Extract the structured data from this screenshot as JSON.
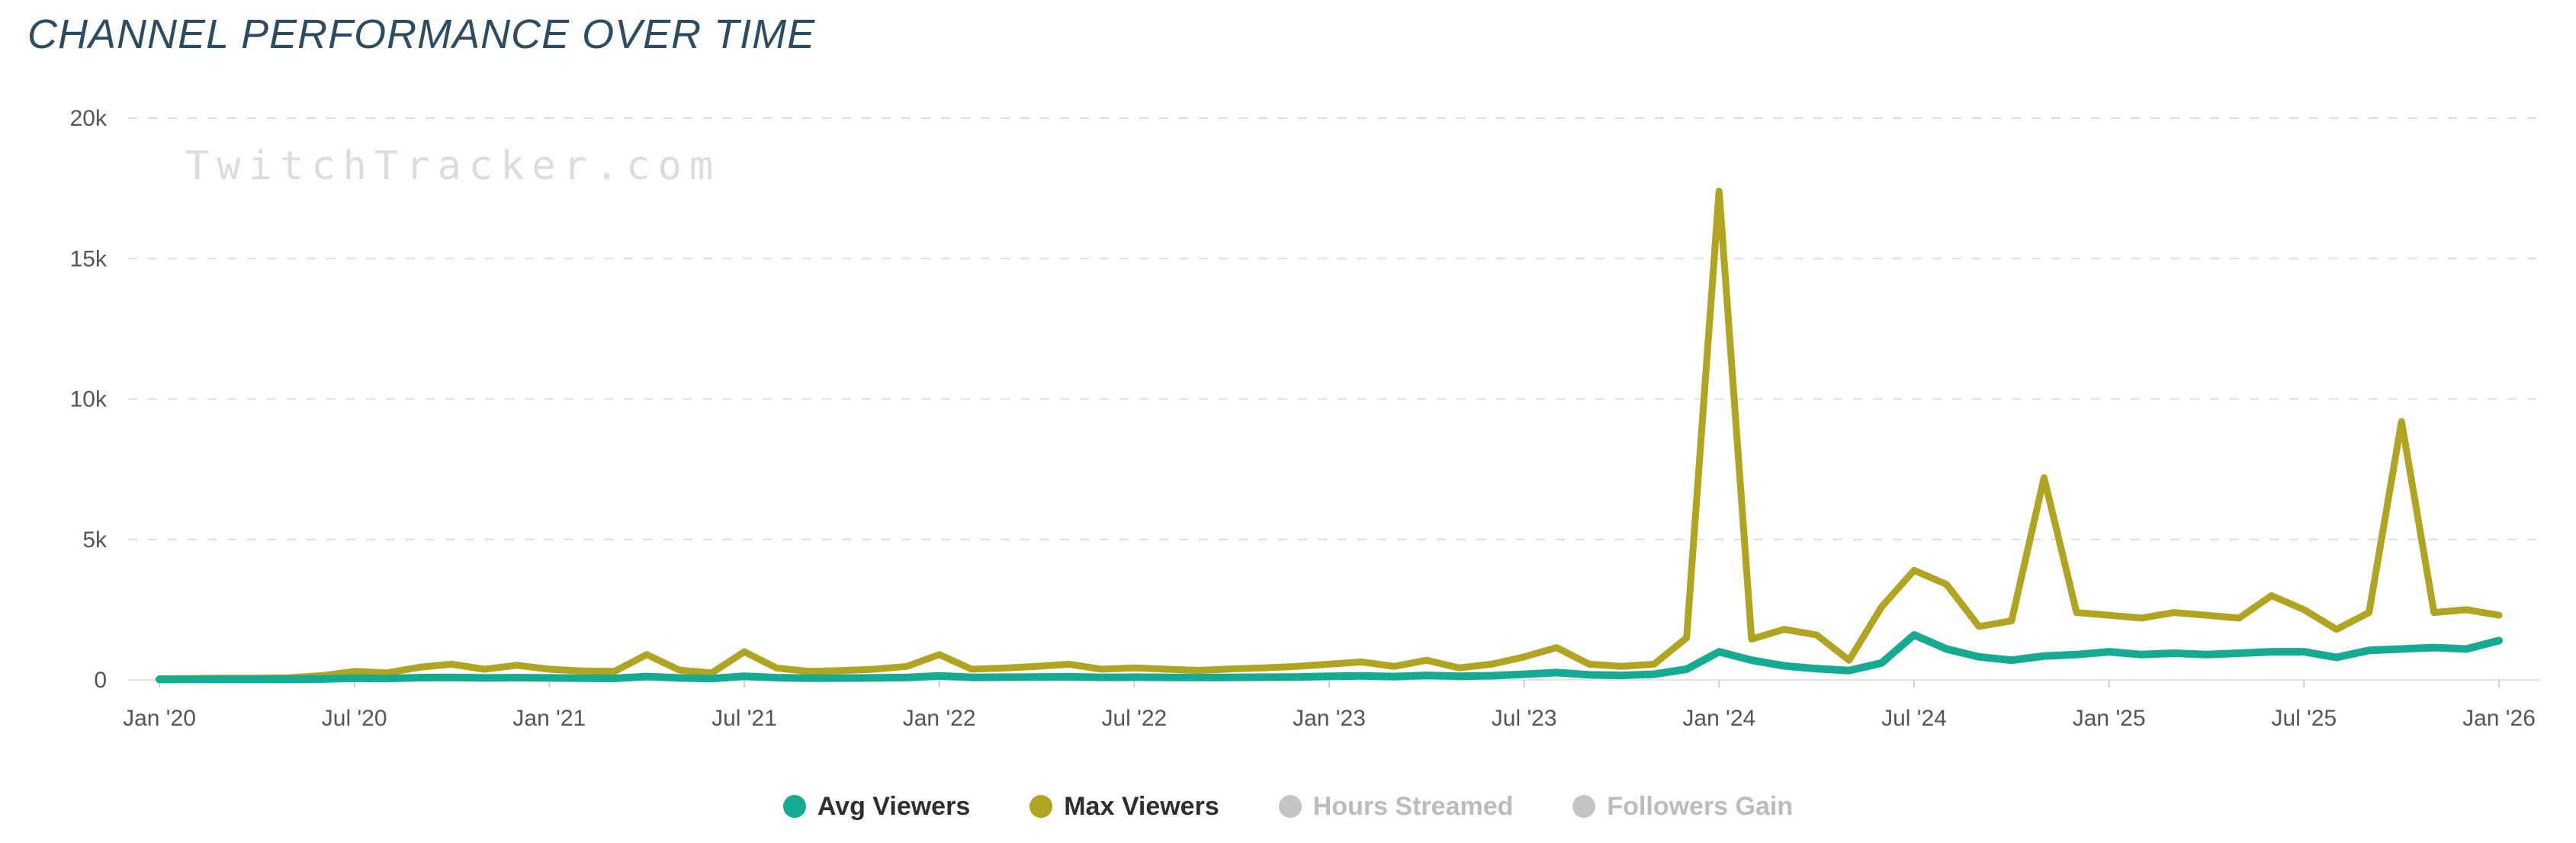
{
  "title": "CHANNEL PERFORMANCE OVER TIME",
  "watermark": "TwitchTracker.com",
  "colors": {
    "avg_viewers": "#15ab92",
    "max_viewers": "#b0a420",
    "disabled_dot": "#c5c5c5",
    "grid": "#dedede",
    "zero_line": "#e3e3e3",
    "tick": "#d0d0d0",
    "axis_text": "#555555",
    "title_text": "#2b4c63",
    "watermark_text": "#dcdcdc"
  },
  "legend": {
    "items": [
      {
        "label": "Avg Viewers",
        "color": "#15ab92",
        "active": true
      },
      {
        "label": "Max Viewers",
        "color": "#b0a420",
        "active": true
      },
      {
        "label": "Hours Streamed",
        "color": "#c5c5c5",
        "active": false
      },
      {
        "label": "Followers Gain",
        "color": "#c5c5c5",
        "active": false
      }
    ]
  },
  "chart_data": {
    "type": "line",
    "title": "CHANNEL PERFORMANCE OVER TIME",
    "xlabel": "",
    "ylabel": "",
    "ylim": [
      0,
      20000
    ],
    "grid": true,
    "legend_position": "bottom",
    "y_ticks": [
      0,
      5000,
      10000,
      15000,
      20000
    ],
    "y_tick_labels": [
      "0",
      "5k",
      "10k",
      "15k",
      "20k"
    ],
    "x_tick_month_indices": [
      0,
      6,
      12,
      18,
      24,
      30,
      36,
      42,
      48,
      54,
      60,
      66,
      72
    ],
    "x_tick_labels": [
      "Jan '20",
      "Jul '20",
      "Jan '21",
      "Jul '21",
      "Jan '22",
      "Jul '22",
      "Jan '23",
      "Jul '23",
      "Jan '24",
      "Jul '24",
      "Jan '25",
      "Jul '25",
      "Jan '26"
    ],
    "x_unit": "month (Jan 2020 - Jan 2026, monthly)",
    "series": [
      {
        "name": "Max Viewers",
        "color": "#b0a420",
        "values": [
          40,
          50,
          60,
          60,
          80,
          150,
          300,
          250,
          450,
          560,
          380,
          520,
          380,
          320,
          300,
          900,
          350,
          250,
          1000,
          420,
          300,
          330,
          380,
          480,
          900,
          380,
          420,
          480,
          560,
          380,
          430,
          380,
          340,
          390,
          430,
          480,
          560,
          640,
          480,
          700,
          430,
          560,
          820,
          1150,
          560,
          480,
          560,
          1500,
          17400,
          1450,
          1800,
          1600,
          700,
          2600,
          3900,
          3400,
          1900,
          2100,
          7200,
          2400,
          2300,
          2200,
          2400,
          2300,
          2200,
          3000,
          2500,
          1800,
          2400,
          9200,
          2400,
          2500,
          2300
        ]
      },
      {
        "name": "Avg Viewers",
        "color": "#15ab92",
        "values": [
          15,
          15,
          20,
          20,
          25,
          30,
          60,
          50,
          80,
          90,
          70,
          80,
          70,
          60,
          55,
          120,
          70,
          50,
          130,
          80,
          60,
          65,
          70,
          85,
          140,
          90,
          95,
          100,
          110,
          90,
          95,
          90,
          85,
          90,
          95,
          100,
          130,
          140,
          120,
          160,
          130,
          150,
          200,
          260,
          180,
          160,
          200,
          380,
          1000,
          700,
          500,
          400,
          330,
          600,
          1600,
          1100,
          820,
          700,
          850,
          900,
          1000,
          900,
          950,
          900,
          950,
          1000,
          1000,
          800,
          1050,
          1100,
          1150,
          1100,
          1400
        ]
      }
    ]
  }
}
